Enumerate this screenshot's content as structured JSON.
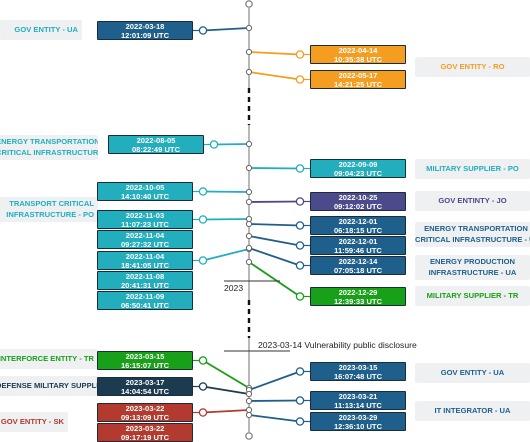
{
  "colors": {
    "teal": "#22aebd",
    "navy": "#1f5f8b",
    "orange": "#f59d20",
    "purple": "#4b4a8a",
    "green": "#18a018",
    "dark": "#1c3a50",
    "red": "#b23a2e",
    "axis": "#888888"
  },
  "markers": {
    "year": "2023",
    "disclosure": "2023-03-14 Vulnerability public disclosure"
  },
  "entities": [
    {
      "id": "e1",
      "text": "GOV ENTITY - UA",
      "color": "#22aebd"
    },
    {
      "id": "e2",
      "text": "GOV ENTITY - RO",
      "color": "#f59d20"
    },
    {
      "id": "e3",
      "text": "ENERGY TRANSPORTATION\nCRITICAL INFRASTRUCTURE - PO",
      "color": "#22aebd"
    },
    {
      "id": "e4",
      "text": "MILITARY SUPPLIER - PO",
      "color": "#22aebd"
    },
    {
      "id": "e5",
      "text": "TRANSPORT CRITICAL\nINFRASTRUCTURE - PO",
      "color": "#22aebd"
    },
    {
      "id": "e6",
      "text": "GOV ENTINTY - JO",
      "color": "#4b4a8a"
    },
    {
      "id": "e7",
      "text": "ENERGY TRANSPORTATION\nCRITICAL INFRASTRUCTURE - UA",
      "color": "#1f5f8b"
    },
    {
      "id": "e8",
      "text": "ENERGY PRODUCTION\nINFRASTRUCTURE - UA",
      "color": "#1f5f8b"
    },
    {
      "id": "e9",
      "text": "MILITARY SUPPLIER - TR",
      "color": "#18a018"
    },
    {
      "id": "e10",
      "text": "INTERFORCE ENTITY - TR",
      "color": "#18a018"
    },
    {
      "id": "e11",
      "text": "GOV ENTITY - UA",
      "color": "#1f5f8b"
    },
    {
      "id": "e12",
      "text": "DEFENSE MILITARY SUPPLIER - IT",
      "color": "#1c3a50"
    },
    {
      "id": "e13",
      "text": "IT INTEGRATOR - UA",
      "color": "#1f5f8b"
    },
    {
      "id": "e14",
      "text": "GOV ENTITY - SK",
      "color": "#b23a2e"
    }
  ],
  "events": [
    {
      "date": "2022-03-18",
      "time": "12:01:09 UTC",
      "color": "#1f5f8b"
    },
    {
      "date": "2022-04-14",
      "time": "10:35:38 UTC",
      "color": "#f59d20"
    },
    {
      "date": "2022-05-17",
      "time": "14:21:25 UTC",
      "color": "#f59d20"
    },
    {
      "date": "2022-08-05",
      "time": "08:22:49 UTC",
      "color": "#22aebd"
    },
    {
      "date": "2022-09-09",
      "time": "09:04:23 UTC",
      "color": "#22aebd"
    },
    {
      "date": "2022-10-05",
      "time": "14:10:40 UTC",
      "color": "#22aebd"
    },
    {
      "date": "2022-10-25",
      "time": "09:12:02 UTC",
      "color": "#4b4a8a"
    },
    {
      "date": "2022-11-03",
      "time": "11:07:23 UTC",
      "color": "#22aebd"
    },
    {
      "date": "2022-12-01",
      "time": "06:18:15 UTC",
      "color": "#1f5f8b"
    },
    {
      "date": "2022-12-01",
      "time": "11:59:46 UTC",
      "color": "#1f5f8b"
    },
    {
      "date": "2022-11-04",
      "time": "09:27:32 UTC",
      "color": "#22aebd"
    },
    {
      "date": "2022-11-04",
      "time": "18:41:05 UTC",
      "color": "#22aebd"
    },
    {
      "date": "2022-12-14",
      "time": "07:05:18 UTC",
      "color": "#1f5f8b"
    },
    {
      "date": "2022-11-08",
      "time": "20:41:31 UTC",
      "color": "#22aebd"
    },
    {
      "date": "2022-12-29",
      "time": "12:39:33 UTC",
      "color": "#18a018"
    },
    {
      "date": "2022-11-09",
      "time": "06:50:41 UTC",
      "color": "#22aebd"
    },
    {
      "date": "2023-03-15",
      "time": "16:15:07 UTC",
      "color": "#18a018"
    },
    {
      "date": "2023-03-15",
      "time": "16:07:48 UTC",
      "color": "#1f5f8b"
    },
    {
      "date": "2023-03-17",
      "time": "14:04:54 UTC",
      "color": "#1c3a50"
    },
    {
      "date": "2023-03-21",
      "time": "11:13:14 UTC",
      "color": "#1f5f8b"
    },
    {
      "date": "2023-03-22",
      "time": "09:13:09 UTC",
      "color": "#b23a2e"
    },
    {
      "date": "2023-03-29",
      "time": "12:36:10 UTC",
      "color": "#1f5f8b"
    },
    {
      "date": "2023-03-22",
      "time": "09:17:19 UTC",
      "color": "#b23a2e"
    }
  ]
}
